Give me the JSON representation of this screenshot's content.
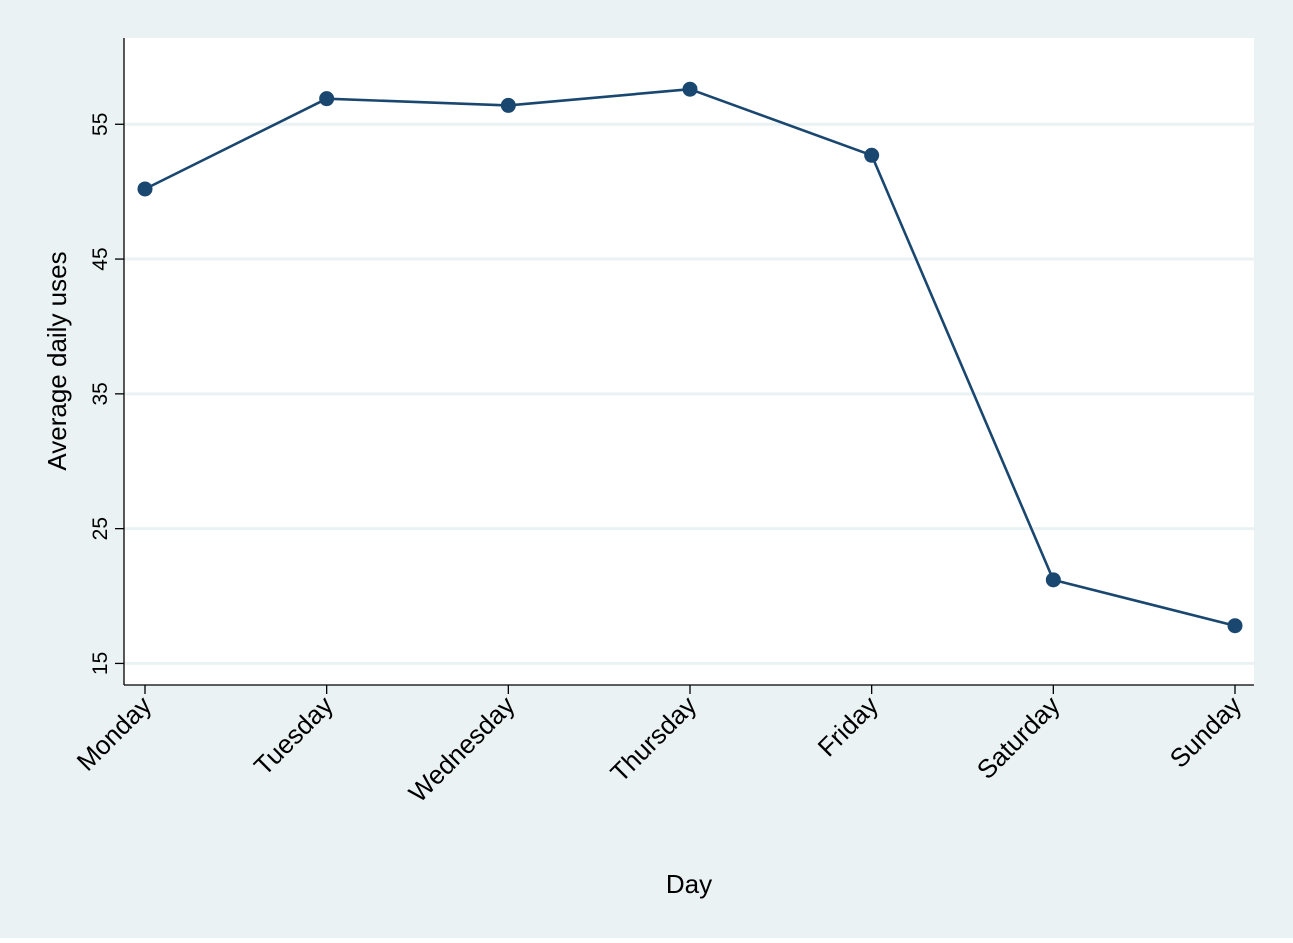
{
  "chart_data": {
    "type": "line",
    "title": "",
    "xlabel": "Day",
    "ylabel": "Average daily uses",
    "categories": [
      "Monday",
      "Tuesday",
      "Wednesday",
      "Thursday",
      "Friday",
      "Saturday",
      "Sunday"
    ],
    "series": [
      {
        "values": [
          50.2,
          56.9,
          56.4,
          57.6,
          52.7,
          21.2,
          17.8
        ]
      }
    ],
    "ylim": [
      13.4,
      61.4
    ],
    "yticks": [
      15,
      25,
      35,
      45,
      55
    ],
    "grid": "horizontal",
    "legend": "none",
    "colors": {
      "outer_background": "#eaf2f3",
      "plot_background": "#ffffff",
      "grid": "#eaf2f3",
      "series": "#1a476f"
    }
  }
}
